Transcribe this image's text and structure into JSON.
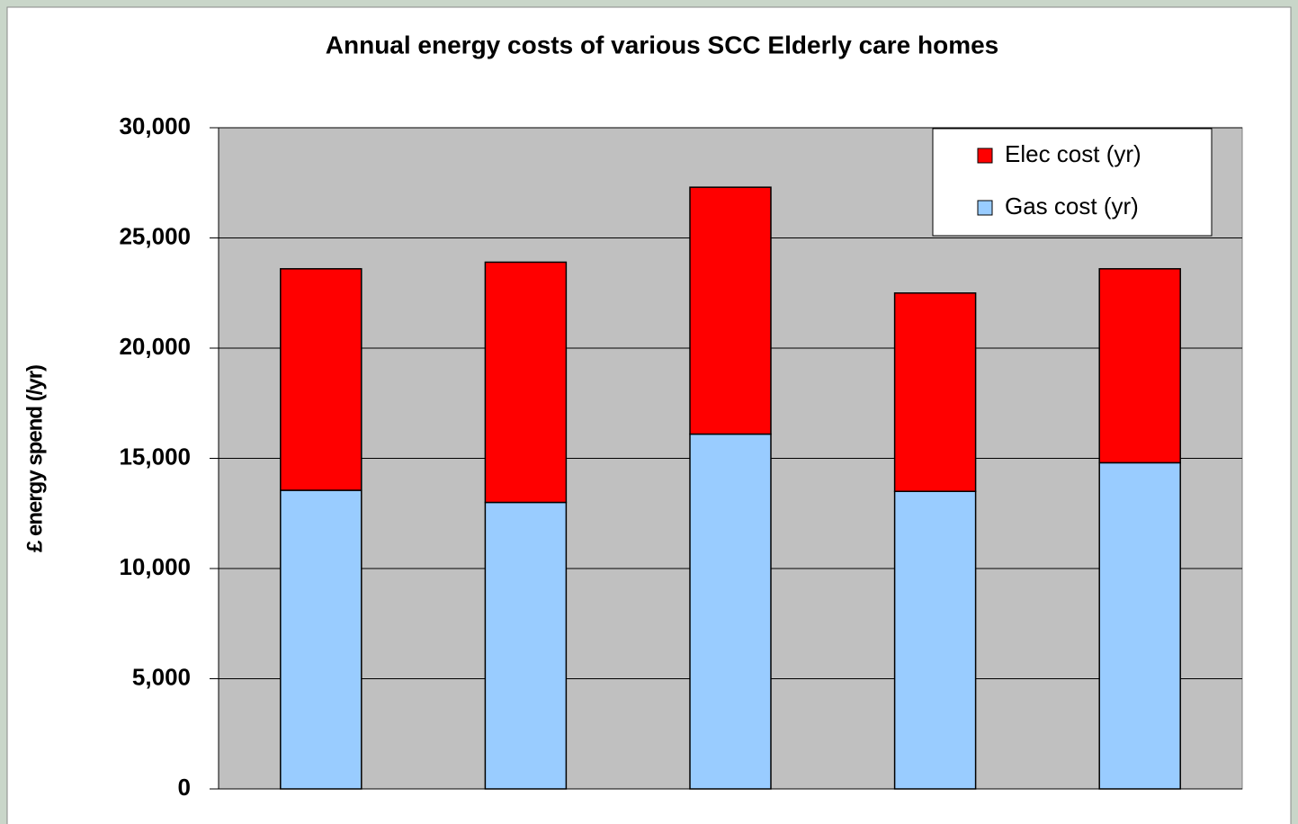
{
  "chart_data": {
    "type": "stacked_bar",
    "title": "Annual energy costs of various SCC Elderly care homes",
    "ylabel": "£ energy spend (/yr)",
    "categories": [
      null,
      null,
      null,
      null,
      null
    ],
    "series": [
      {
        "name": "Gas cost (yr)",
        "color": "#99ccff",
        "values": [
          13550,
          13000,
          16100,
          13500,
          14800
        ]
      },
      {
        "name": "Elec cost (yr)",
        "color": "#ff0000",
        "values": [
          10050,
          10900,
          11200,
          9000,
          8800
        ]
      }
    ],
    "ylim": [
      0,
      30000
    ],
    "yticks": [
      0,
      {
        "value": 5000,
        "label": "5,000"
      },
      {
        "value": 10000,
        "label": "10,000"
      },
      {
        "value": 15000,
        "label": "15,000"
      },
      {
        "value": 20000,
        "label": "20,000"
      },
      {
        "value": 25000,
        "label": "25,000"
      },
      {
        "value": 30000,
        "label": "30,000"
      }
    ],
    "grid": true,
    "legend": "top-right",
    "plot_background": "#c0c0c0"
  }
}
